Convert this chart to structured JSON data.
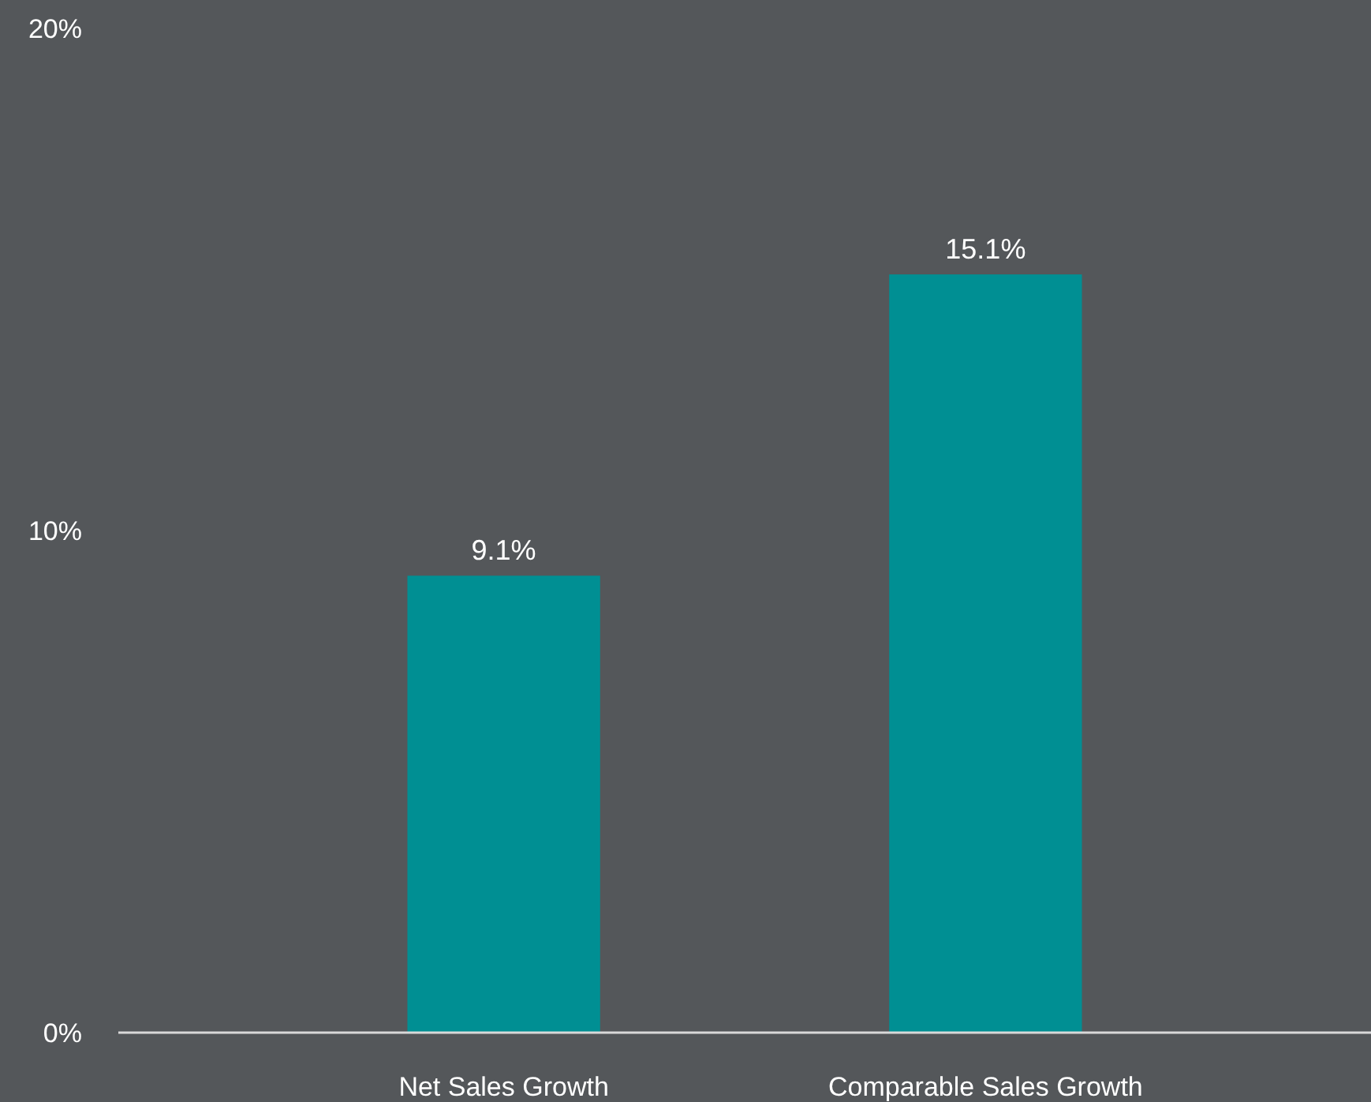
{
  "chart_data": {
    "type": "bar",
    "categories": [
      "Net Sales Growth",
      "Comparable Sales Growth"
    ],
    "values": [
      9.1,
      15.1
    ],
    "color": "#008f93",
    "value_labels": [
      "9.1%",
      "15.1%"
    ],
    "ylim": [
      0,
      20
    ],
    "yticks": [
      {
        "value": 0,
        "label": "0%"
      },
      {
        "value": 10,
        "label": "10%"
      },
      {
        "value": 20,
        "label": "20%"
      }
    ],
    "grid": false
  }
}
